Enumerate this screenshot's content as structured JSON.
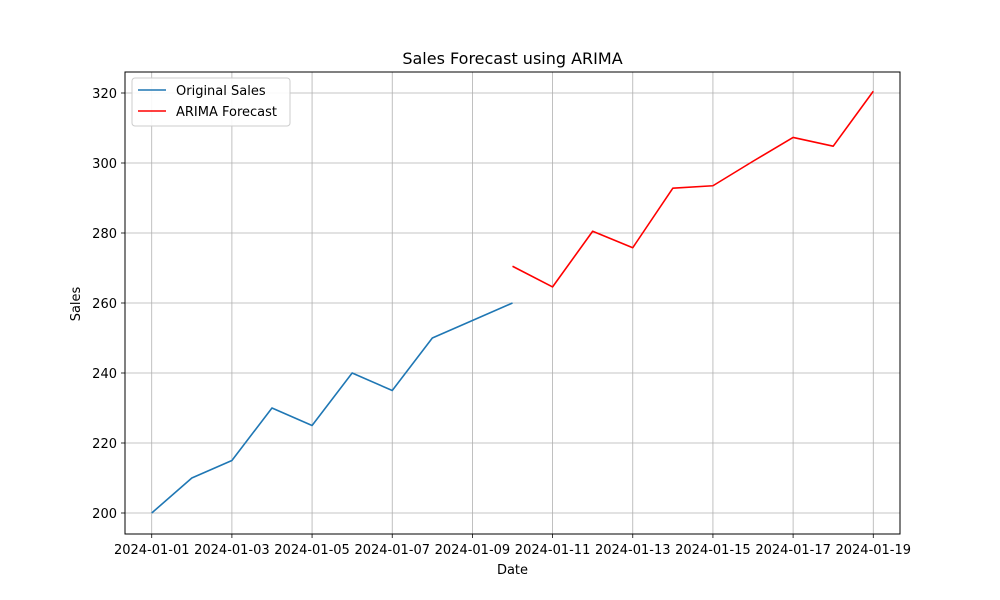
{
  "chart_data": {
    "type": "line",
    "title": "Sales Forecast using ARIMA",
    "xlabel": "Date",
    "ylabel": "Sales",
    "x_ticks": [
      "2024-01-01",
      "2024-01-03",
      "2024-01-05",
      "2024-01-07",
      "2024-01-09",
      "2024-01-11",
      "2024-01-13",
      "2024-01-15",
      "2024-01-17",
      "2024-01-19"
    ],
    "y_ticks": [
      200,
      220,
      240,
      260,
      280,
      300,
      320
    ],
    "xlim": [
      "2023-12-31T08:00",
      "2024-01-19T16:00"
    ],
    "ylim": [
      194,
      326
    ],
    "grid": true,
    "legend_position": "top-left",
    "series": [
      {
        "name": "Original Sales",
        "color": "#1f77b4",
        "x": [
          "2024-01-01",
          "2024-01-02",
          "2024-01-03",
          "2024-01-04",
          "2024-01-05",
          "2024-01-06",
          "2024-01-07",
          "2024-01-08",
          "2024-01-09",
          "2024-01-10"
        ],
        "y": [
          200,
          210,
          215,
          230,
          225,
          240,
          235,
          250,
          255,
          260
        ]
      },
      {
        "name": "ARIMA Forecast",
        "color": "#ff0000",
        "x": [
          "2024-01-10",
          "2024-01-11",
          "2024-01-12",
          "2024-01-13",
          "2024-01-14",
          "2024-01-15",
          "2024-01-16",
          "2024-01-17",
          "2024-01-18",
          "2024-01-19"
        ],
        "y": [
          270.5,
          264.6,
          280.5,
          275.8,
          292.8,
          293.5,
          300.5,
          307.3,
          304.8,
          320.5
        ]
      }
    ]
  }
}
